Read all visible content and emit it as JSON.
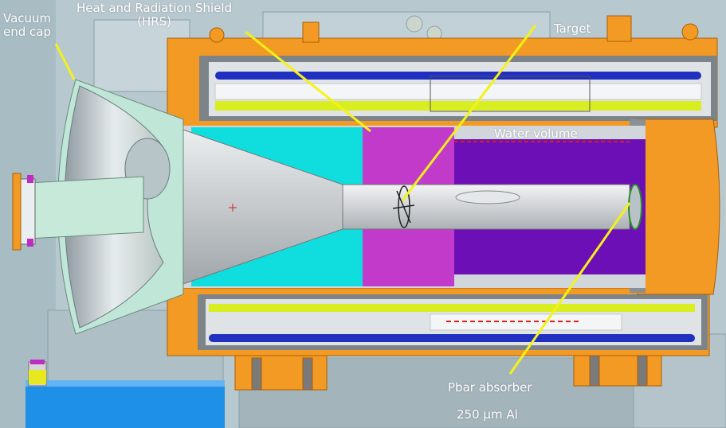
{
  "labels": {
    "vacuum_end_cap": [
      "Vacuum",
      "end cap"
    ],
    "hrs": [
      "Heat and Radiation Shield",
      "(HRS)"
    ],
    "target": "Target",
    "water_volume": "Water volume",
    "pbar_absorber": "Pbar absorber",
    "pbar_absorber_spec": "250 µm Al"
  },
  "colors": {
    "background": "#b8c8cf",
    "shield_orange": "#f39a24",
    "cone_silver": "#d9dcde",
    "cyan_section": "#10dede",
    "magenta_section": "#c23ac9",
    "purple_section": "#6c0fb6",
    "callout_line": "#f5f218",
    "coil_blue": "#2030c0",
    "coil_yellow": "#d8ee20"
  }
}
